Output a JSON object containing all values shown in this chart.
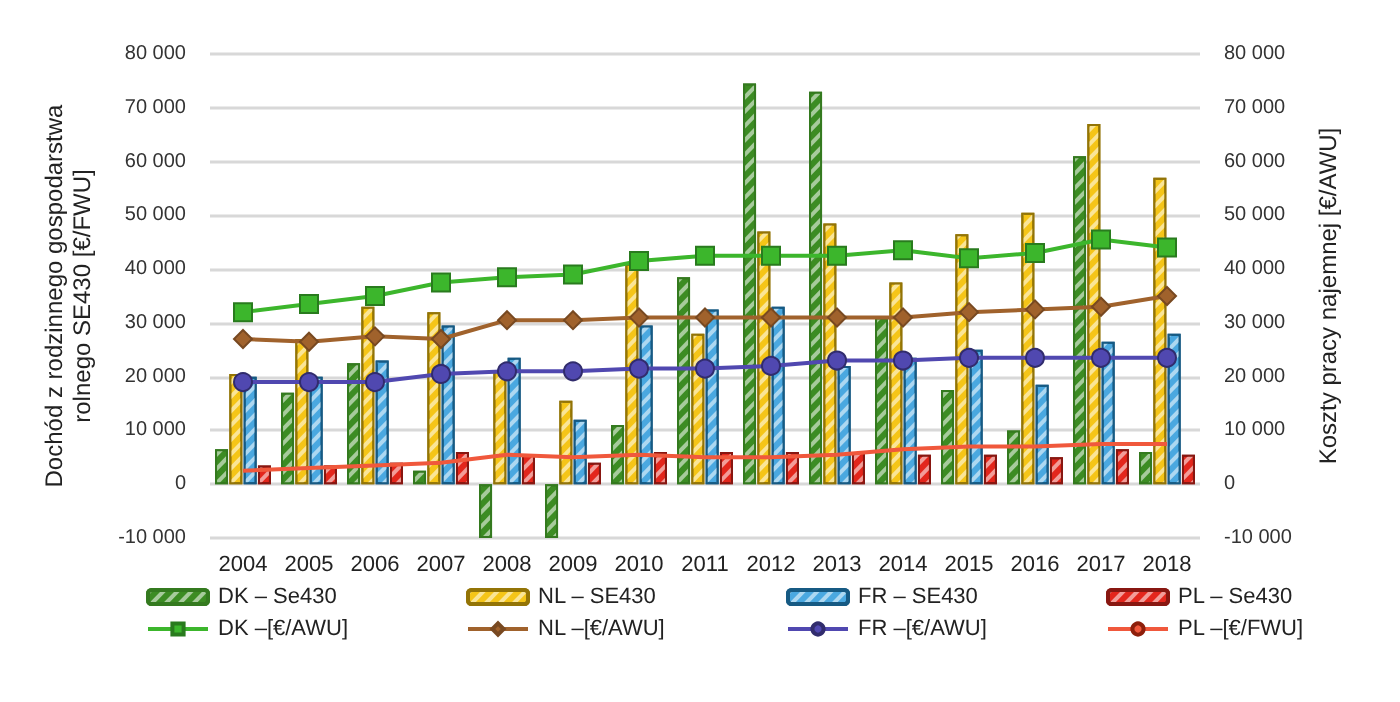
{
  "chart_data": {
    "type": "bar",
    "ylabel": "Dochód z rodzinnego gospodarstwa rolnego SE430 [€/FWU]",
    "y2label": "Koszty pracy najemnej [€/AWU]",
    "categories": [
      "2004",
      "2005",
      "2006",
      "2007",
      "2008",
      "2009",
      "2010",
      "2011",
      "2012",
      "2013",
      "2014",
      "2015",
      "2016",
      "2017",
      "2018"
    ],
    "series": [
      {
        "name": "DK – Se430",
        "color": "#3c8c23",
        "values": [
          6500,
          17000,
          22500,
          2500,
          -10000,
          -10000,
          11000,
          38500,
          74500,
          73000,
          31000,
          17500,
          10000,
          61000,
          6000
        ]
      },
      {
        "name": "NL – SE430",
        "color": "#f5c518",
        "values": [
          20500,
          27000,
          33000,
          32000,
          21000,
          15500,
          41000,
          28000,
          47000,
          48500,
          37500,
          46500,
          50500,
          67000,
          57000
        ]
      },
      {
        "name": "FR – SE430",
        "color": "#4aa8e0",
        "values": [
          20000,
          20000,
          23000,
          29500,
          23500,
          12000,
          29500,
          32500,
          33000,
          22000,
          23500,
          25000,
          18500,
          26500,
          28000
        ]
      },
      {
        "name": "PL – Se430",
        "color": "#e3261c",
        "values": [
          3500,
          3500,
          4000,
          6000,
          5500,
          4000,
          6000,
          6000,
          6000,
          6000,
          5500,
          5500,
          5000,
          6500,
          5500
        ]
      },
      {
        "name": "DK –[€/AWU]",
        "type": "line",
        "marker": "square",
        "color": "#3cb62c",
        "values": [
          32000,
          33500,
          35000,
          37500,
          38500,
          39000,
          41500,
          42500,
          42500,
          42500,
          43500,
          42000,
          43000,
          45500,
          44000
        ]
      },
      {
        "name": "NL –[€/AWU]",
        "type": "line",
        "marker": "diamond",
        "color": "#a0622c",
        "values": [
          27000,
          26500,
          27500,
          27000,
          30500,
          30500,
          31000,
          31000,
          31000,
          31000,
          31000,
          32000,
          32500,
          33000,
          35000
        ]
      },
      {
        "name": "FR –[€/AWU]",
        "type": "line",
        "marker": "circle",
        "color": "#5048b0",
        "values": [
          19000,
          19000,
          19000,
          20500,
          21000,
          21000,
          21500,
          21500,
          22000,
          23000,
          23000,
          23500,
          23500,
          23500,
          23500
        ]
      },
      {
        "name": "PL –[€/FWU]",
        "type": "line",
        "marker": "none",
        "color": "#f0583c",
        "values": [
          2500,
          3000,
          3500,
          4000,
          5500,
          5000,
          5500,
          5000,
          5000,
          5500,
          6500,
          7000,
          7000,
          7500,
          7500
        ]
      }
    ],
    "ylim": [
      -10000,
      80000
    ],
    "yticks": [
      {
        "value": -10000,
        "label": "-10 000"
      },
      {
        "value": 0,
        "label": "0"
      },
      {
        "value": 10000,
        "label": "10 000"
      },
      {
        "value": 20000,
        "label": "20 000"
      },
      {
        "value": 30000,
        "label": "30 000"
      },
      {
        "value": 40000,
        "label": "40 000"
      },
      {
        "value": 50000,
        "label": "50 000"
      },
      {
        "value": 60000,
        "label": "60 000"
      },
      {
        "value": 70000,
        "label": "70 000"
      },
      {
        "value": 80000,
        "label": "80 000"
      }
    ],
    "y2lim": [
      -10000,
      80000
    ],
    "y2ticks": [
      {
        "value": -10000,
        "label": "-10 000"
      },
      {
        "value": 0,
        "label": "0"
      },
      {
        "value": 10000,
        "label": "10 000"
      },
      {
        "value": 20000,
        "label": "20 000"
      },
      {
        "value": 30000,
        "label": "30 000"
      },
      {
        "value": 40000,
        "label": "40 000"
      },
      {
        "value": 50000,
        "label": "50 000"
      },
      {
        "value": 60000,
        "label": "60 000"
      },
      {
        "value": 70000,
        "label": "70 000"
      },
      {
        "value": 80000,
        "label": "80 000"
      }
    ],
    "grid": "y",
    "legend": "bottom"
  }
}
